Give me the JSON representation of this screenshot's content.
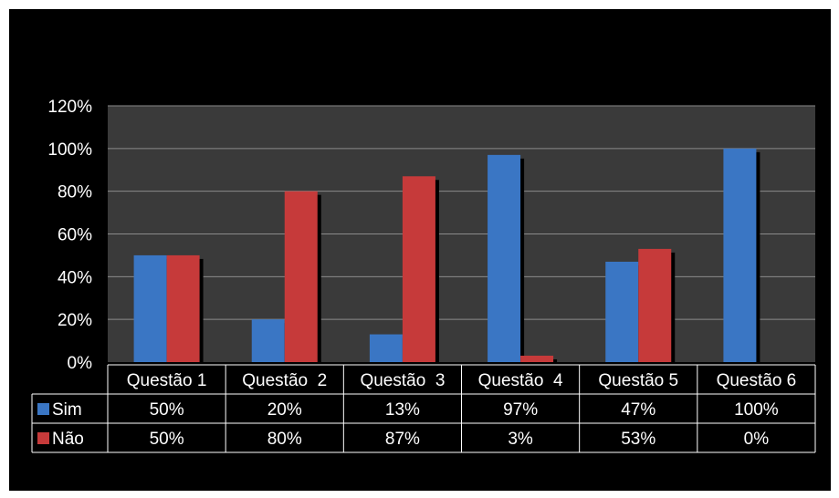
{
  "chart_data": {
    "type": "bar",
    "categories": [
      "Questão 1",
      "Questão  2",
      "Questão  3",
      "Questão  4",
      "Questão 5",
      "Questão 6"
    ],
    "series": [
      {
        "name": "Sim",
        "values": [
          50,
          20,
          13,
          97,
          47,
          100
        ],
        "labels": [
          "50%",
          "20%",
          "13%",
          "97%",
          "47%",
          "100%"
        ],
        "color": "#3a76c4"
      },
      {
        "name": "Não",
        "values": [
          50,
          80,
          87,
          3,
          53,
          0
        ],
        "labels": [
          "50%",
          "80%",
          "87%",
          "3%",
          "53%",
          "0%"
        ],
        "color": "#c63a3a"
      }
    ],
    "y_ticks": [
      "0%",
      "20%",
      "40%",
      "60%",
      "80%",
      "100%",
      "120%"
    ],
    "ylim": [
      0,
      120
    ],
    "grid": true,
    "legend": "data-table",
    "title": "",
    "xlabel": "",
    "ylabel": ""
  },
  "colors": {
    "background": "#000000",
    "plot_area": "#3a3a3a",
    "gridline": "#8a8a8a",
    "text": "#ffffff"
  }
}
